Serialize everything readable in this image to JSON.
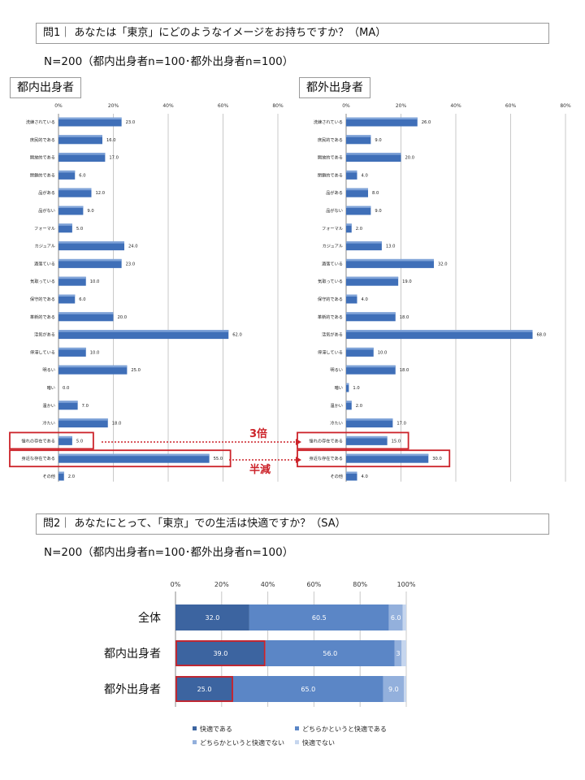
{
  "q1": {
    "title": "問1｜ あなたは「東京」にどのようなイメージをお持ちですか？（MA）",
    "n_text": "N=200（都内出身者n=100･都外出身者n=100）"
  },
  "q2": {
    "title": "問2｜ あなたにとって、「東京」での生活は快適ですか？（SA）",
    "n_text": "N=200（都内出身者n=100･都外出身者n=100）"
  },
  "colors": {
    "bar_blue": "#3f6fb8",
    "highlight_red": "#cc2229",
    "seg1": "#3c64a0",
    "seg2": "#5b86c6",
    "seg3": "#93b0dc",
    "seg4": "#c6d6ee"
  },
  "annotations": {
    "triple": "3倍",
    "half": "半減"
  },
  "chart_data": [
    {
      "type": "bar",
      "orientation": "horizontal",
      "title": "都内出身者",
      "categories": [
        "洗練されている",
        "庶民的である",
        "開放的である",
        "閉鎖的である",
        "品がある",
        "品がない",
        "フォーマル",
        "カジュアル",
        "酒落ている",
        "気取っている",
        "保守的である",
        "革新的である",
        "活気がある",
        "停滞している",
        "明るい",
        "暗い",
        "温かい",
        "冷たい",
        "憧れの存在である",
        "身近な存在である",
        "その他"
      ],
      "values": [
        23.0,
        16.0,
        17.0,
        6.0,
        12.0,
        9.0,
        5.0,
        24.0,
        23.0,
        10.0,
        6.0,
        20.0,
        62.0,
        10.0,
        25.0,
        0.0,
        7.0,
        18.0,
        5.0,
        55.0,
        2.0
      ],
      "value_labels": [
        "23.0",
        "16.0",
        "17.0",
        "6.0",
        "12.0",
        "9.0",
        "5.0",
        "24.0",
        "23.0",
        "10.0",
        "6.0",
        "20.0",
        "62.0",
        "10.0",
        "25.0",
        "0.0",
        "7.0",
        "18.0",
        "5.0",
        "55.0",
        "2.0"
      ],
      "xticks": [
        "0%",
        "20%",
        "40%",
        "60%",
        "80%"
      ],
      "xlim": [
        0,
        80
      ],
      "grid": true,
      "highlighted": [
        "憧れの存在である",
        "身近な存在である"
      ]
    },
    {
      "type": "bar",
      "orientation": "horizontal",
      "title": "都外出身者",
      "categories": [
        "洗練されている",
        "庶民的である",
        "開放的である",
        "閉鎖的である",
        "品がある",
        "品がない",
        "フォーマル",
        "カジュアル",
        "酒落ている",
        "気取っている",
        "保守的である",
        "革新的である",
        "活気がある",
        "停滞している",
        "明るい",
        "暗い",
        "温かい",
        "冷たい",
        "憧れの存在である",
        "身近な存在である",
        "その他"
      ],
      "values": [
        26.0,
        9.0,
        20.0,
        4.0,
        8.0,
        9.0,
        2.0,
        13.0,
        32.0,
        19.0,
        4.0,
        18.0,
        68.0,
        10.0,
        18.0,
        1.0,
        2.0,
        17.0,
        15.0,
        30.0,
        4.0
      ],
      "value_labels": [
        "26.0",
        "9.0",
        "20.0",
        "4.0",
        "8.0",
        "9.0",
        "2.0",
        "13.0",
        "32.0",
        "19.0",
        "4.0",
        "18.0",
        "68.0",
        "10.0",
        "18.0",
        "1.0",
        "2.0",
        "17.0",
        "15.0",
        "30.0",
        "4.0"
      ],
      "xticks": [
        "0%",
        "20%",
        "40%",
        "60%",
        "80%"
      ],
      "xlim": [
        0,
        80
      ],
      "grid": true,
      "highlighted": [
        "憧れの存在である",
        "身近な存在である"
      ]
    },
    {
      "type": "bar",
      "orientation": "horizontal",
      "stacked": "percent",
      "categories": [
        "全体",
        "都内出身者",
        "都外出身者"
      ],
      "series": [
        {
          "name": "快適である",
          "values": [
            32.0,
            39.0,
            25.0
          ],
          "labels": [
            "32.0",
            "39.0",
            "25.0"
          ]
        },
        {
          "name": "どちらかというと快適である",
          "values": [
            60.5,
            56.0,
            65.0
          ],
          "labels": [
            "60.5",
            "56.0",
            "65.0"
          ]
        },
        {
          "name": "どちらかというと快適でない",
          "values": [
            6.0,
            3.0,
            9.0
          ],
          "labels": [
            "6.0",
            "3",
            "9.0"
          ]
        },
        {
          "name": "快適でない",
          "values": [
            1.5,
            2.0,
            1.0
          ],
          "labels": [
            "1.5",
            "2.0",
            "1.0"
          ]
        }
      ],
      "xticks": [
        "0%",
        "20%",
        "40%",
        "60%",
        "80%",
        "100%"
      ],
      "xlim": [
        0,
        100
      ],
      "grid": true,
      "legend_position": "bottom",
      "highlighted": [
        "都内出身者:快適である",
        "都外出身者:快適である"
      ]
    }
  ]
}
